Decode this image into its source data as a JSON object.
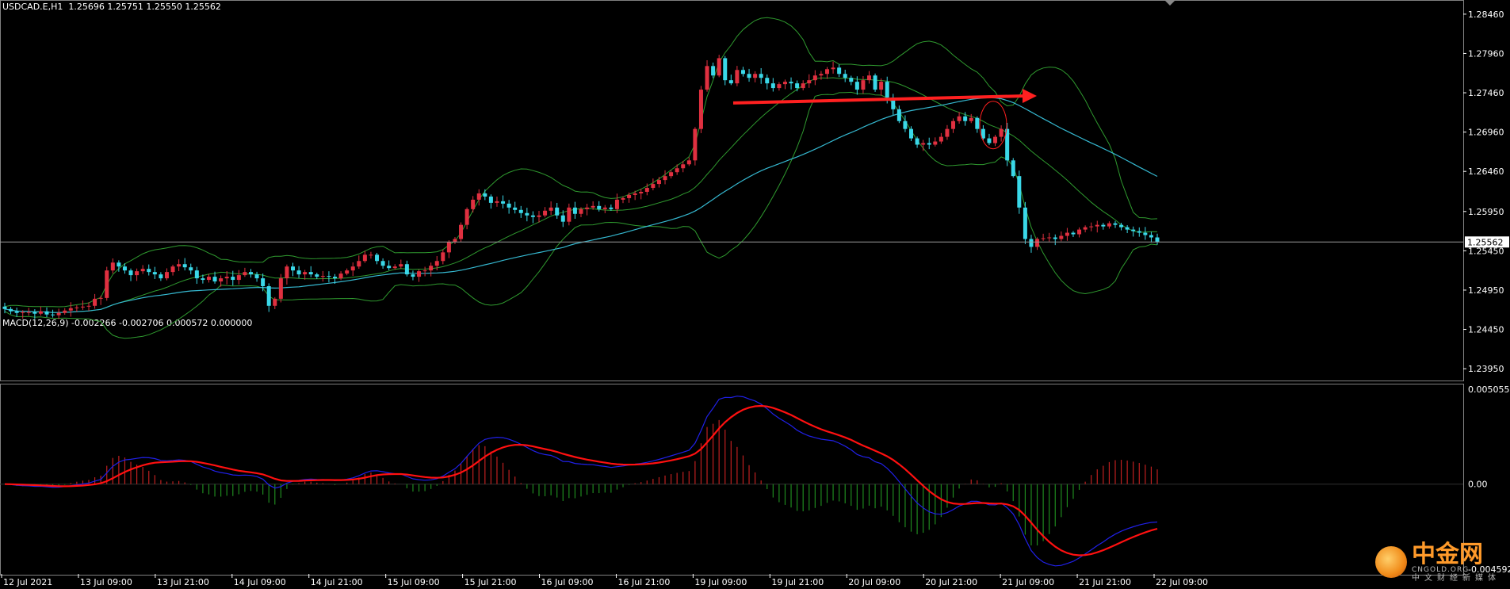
{
  "header": {
    "main_title": "USDCAD.E,H1  1.25696 1.25751 1.25550 1.25562",
    "macd_title": "MACD(12,26,9) -0.002266 -0.002706 0.000572 0.000000"
  },
  "watermark": {
    "name": "中金网",
    "sub": "CNGOLD.ORG",
    "cn": "中文财经新媒体",
    "logo_icon": "cngold-logo-icon"
  },
  "chart_data": [
    {
      "type": "candlestick",
      "symbol": "USDCAD.E",
      "timeframe": "H1",
      "ohlc_header": [
        1.25696,
        1.25751,
        1.2555,
        1.25562
      ],
      "y_ticks": [
        "1.28460",
        "1.27960",
        "1.27460",
        "1.26960",
        "1.26460",
        "1.25950",
        "1.25450",
        "1.24950",
        "1.24450",
        "1.23950"
      ],
      "ylim": [
        1.238,
        1.2862
      ],
      "x_ticks": [
        "12 Jul 2021",
        "13 Jul 09:00",
        "13 Jul 21:00",
        "14 Jul 09:00",
        "14 Jul 21:00",
        "15 Jul 09:00",
        "15 Jul 21:00",
        "16 Jul 09:00",
        "16 Jul 21:00",
        "19 Jul 09:00",
        "19 Jul 21:00",
        "20 Jul 09:00",
        "20 Jul 21:00",
        "21 Jul 09:00",
        "21 Jul 21:00",
        "22 Jul 09:00"
      ],
      "current_price_label": "1.25562",
      "colors": {
        "bull": "#e03040",
        "bear": "#3ad8e8",
        "bands": "#2f9a2f",
        "ma": "#35b8d0",
        "annotation": "#ff2020"
      },
      "close": [
        1.2471,
        1.2468,
        1.2466,
        1.2467,
        1.2467,
        1.2465,
        1.2468,
        1.2464,
        1.2463,
        1.2466,
        1.2469,
        1.2472,
        1.2473,
        1.2474,
        1.2475,
        1.2484,
        1.2485,
        1.252,
        1.253,
        1.2525,
        1.252,
        1.2514,
        1.2519,
        1.2522,
        1.2518,
        1.2515,
        1.251,
        1.2518,
        1.2525,
        1.2528,
        1.2524,
        1.252,
        1.251,
        1.2508,
        1.2512,
        1.2506,
        1.251,
        1.2512,
        1.2508,
        1.2514,
        1.2518,
        1.2515,
        1.251,
        1.25,
        1.2475,
        1.2484,
        1.251,
        1.2525,
        1.252,
        1.2515,
        1.2518,
        1.2515,
        1.2512,
        1.2513,
        1.2512,
        1.251,
        1.2516,
        1.252,
        1.2525,
        1.2532,
        1.254,
        1.254,
        1.2532,
        1.2526,
        1.2523,
        1.2525,
        1.2528,
        1.2515,
        1.2512,
        1.2519,
        1.252,
        1.2526,
        1.2532,
        1.2543,
        1.2556,
        1.256,
        1.2578,
        1.2598,
        1.261,
        1.2618,
        1.2614,
        1.2606,
        1.2608,
        1.2605,
        1.26,
        1.2597,
        1.2593,
        1.259,
        1.2588,
        1.259,
        1.2596,
        1.26,
        1.259,
        1.2582,
        1.26,
        1.2592,
        1.2598,
        1.26,
        1.2602,
        1.2598,
        1.26,
        1.2598,
        1.261,
        1.2612,
        1.2616,
        1.2618,
        1.262,
        1.2625,
        1.263,
        1.2635,
        1.264,
        1.2645,
        1.265,
        1.2655,
        1.266,
        1.27,
        1.275,
        1.278,
        1.2768,
        1.279,
        1.2762,
        1.2758,
        1.2775,
        1.277,
        1.2765,
        1.277,
        1.2765,
        1.2758,
        1.2752,
        1.2757,
        1.276,
        1.2758,
        1.2752,
        1.2758,
        1.2762,
        1.2768,
        1.277,
        1.2776,
        1.2778,
        1.277,
        1.2765,
        1.276,
        1.275,
        1.2762,
        1.2768,
        1.275,
        1.276,
        1.274,
        1.2725,
        1.271,
        1.27,
        1.2688,
        1.268,
        1.2682,
        1.268,
        1.2684,
        1.269,
        1.27,
        1.271,
        1.2716,
        1.271,
        1.2714,
        1.27,
        1.2688,
        1.2682,
        1.269,
        1.27,
        1.266,
        1.264,
        1.26,
        1.256,
        1.255,
        1.256,
        1.2561,
        1.2562,
        1.256,
        1.2564,
        1.2568,
        1.2566,
        1.2572,
        1.2575,
        1.2576,
        1.2578,
        1.2576,
        1.258,
        1.2578,
        1.2575,
        1.2572,
        1.257,
        1.2568,
        1.2565,
        1.2562,
        1.25562
      ],
      "annotation": {
        "type": "arrow",
        "from_price": 1.2733,
        "to_price": 1.2742,
        "circle_price": 1.2705
      }
    },
    {
      "type": "macd",
      "params": "12,26,9",
      "values": {
        "main": -0.002266,
        "signal": -0.002706,
        "histogram": 0.000572,
        "extra": 0.0
      },
      "y_ticks": [
        "0.005055",
        "0.00",
        "-0.004592"
      ],
      "ylim": [
        -0.004592,
        0.005055
      ],
      "colors": {
        "main": "#2020e8",
        "signal": "#ff1010",
        "hist_pos": "#c02020",
        "hist_neg": "#1f8a1f"
      }
    }
  ]
}
